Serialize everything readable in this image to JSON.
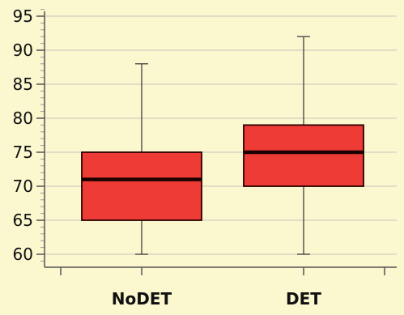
{
  "chart_data": {
    "type": "box",
    "title": "",
    "xlabel": "",
    "ylabel": "",
    "ylim": [
      58.5,
      97
    ],
    "y_ticks": [
      60,
      65,
      70,
      75,
      80,
      85,
      90,
      95
    ],
    "y_tick_labels": [
      "60",
      "65",
      "70",
      "75",
      "80",
      "85",
      "90",
      "95"
    ],
    "categories": [
      "NoDET",
      "DET"
    ],
    "boxes": [
      {
        "category": "NoDET",
        "min": 60,
        "q1": 65,
        "median": 71,
        "q3": 75,
        "max": 88
      },
      {
        "category": "DET",
        "min": 60,
        "q1": 70,
        "median": 75,
        "q3": 79,
        "max": 92
      }
    ],
    "grid": true,
    "colors": {
      "background": "#fbf7cf",
      "box_fill": "#ef3b35",
      "box_stroke": "#2a0000",
      "median": "#1a0000",
      "whisker": "#333333",
      "grid": "#d8d6c4",
      "axis": "#555555"
    }
  }
}
